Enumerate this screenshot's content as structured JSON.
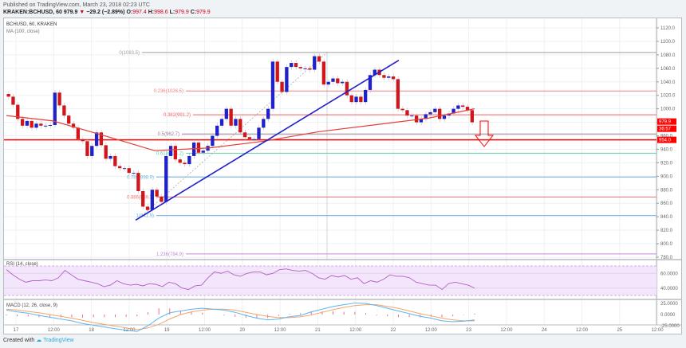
{
  "header": {
    "published": "Published on TradingView.com, March 23, 2018 02:23 UTC",
    "symbol": "KRAKEN:BCHUSD, 60",
    "last": "979.9",
    "change": "−29.2 (−2.89%)",
    "o_label": "O:",
    "o": "997.4",
    "h_label": "H:",
    "h": "998.6",
    "l_label": "L:",
    "l": "979.9",
    "c_label": "C:",
    "c": "979.9"
  },
  "legend": {
    "series": "BCHUSD, 60, KRAKEN",
    "ma": "MA (100, close)",
    "rsi": "RSI (14, close)",
    "macd": "MACD (12, 26, close, 9)"
  },
  "footer": {
    "created_with": "Created with",
    "brand": "TradingView"
  },
  "colors": {
    "up": "#1e22c8",
    "down": "#d0151b",
    "ma": "#e0403a",
    "support": "#ff0000",
    "trendline": "#2020cc",
    "rsi": "#b45fc4",
    "rsi_band": "#f3e5fb",
    "macd": "#5bb4f0",
    "signal": "#f4a46a",
    "hist": "#f06a94"
  },
  "price_labels": {
    "last": "979.9",
    "countdown": "36:57",
    "support": "954.0"
  },
  "chart_data": [
    {
      "type": "candlestick",
      "title": "BCHUSD, 60, KRAKEN",
      "x_ticks": [
        "17",
        "12:00",
        "18",
        "12:00",
        "19",
        "12:00",
        "20",
        "12:00",
        "21",
        "12:00",
        "22",
        "12:00",
        "23",
        "12:00",
        "24",
        "12:00",
        "25",
        "12:00"
      ],
      "y_ticks": [
        "1120.0",
        "1100.0",
        "1080.0",
        "1060.0",
        "1040.0",
        "1020.0",
        "1000.0",
        "980.0",
        "960.0",
        "940.0",
        "920.0",
        "900.0",
        "880.0",
        "860.0",
        "840.0",
        "820.0",
        "800.0",
        "780.0"
      ],
      "ylim": [
        770,
        1130
      ],
      "fibonacci": [
        {
          "ratio": "0",
          "price": 1083.5,
          "label": "0(1083.5)",
          "color": "#9e9e9e"
        },
        {
          "ratio": "0.236",
          "price": 1026.5,
          "label": "0.236(1026.5)",
          "color": "#f08080"
        },
        {
          "ratio": "0.382",
          "price": 991.2,
          "label": "0.382(991.2)",
          "color": "#f06060"
        },
        {
          "ratio": "0.5",
          "price": 962.7,
          "label": "0.5(962.7)",
          "color": "#9c7f8c"
        },
        {
          "ratio": "0.618",
          "price": 934.2,
          "label": "0.618(934.2)",
          "color": "#5fcfa5"
        },
        {
          "ratio": "0.786",
          "price": 898.9,
          "label": "0.786(898.9)",
          "color": "#6fb2dd"
        },
        {
          "ratio": "0.886",
          "price": 869.3,
          "label": "0.886(869.3)",
          "color": "#f07070"
        },
        {
          "ratio": "1",
          "price": 841.9,
          "label": "1(841.9)",
          "color": "#6fb2dd"
        },
        {
          "ratio": "1.236",
          "price": 784.9,
          "label": "1.236(784.9)",
          "color": "#c08ad8"
        }
      ],
      "support_line": 954.0,
      "trendline": {
        "from": {
          "x_label": "18 18:00",
          "price": 835
        },
        "to": {
          "x_label": "22 06:00",
          "price": 1072
        }
      },
      "ma100_approx": [
        [
          0,
          990
        ],
        [
          60,
          982
        ],
        [
          120,
          962
        ],
        [
          190,
          938
        ],
        [
          260,
          942
        ],
        [
          330,
          952
        ],
        [
          400,
          966
        ],
        [
          470,
          976
        ],
        [
          540,
          986
        ],
        [
          600,
          1000
        ]
      ],
      "closes_approx": [
        1018,
        1006,
        985,
        975,
        982,
        972,
        978,
        975,
        975,
        976,
        1024,
        1005,
        990,
        978,
        972,
        955,
        952,
        930,
        945,
        965,
        946,
        926,
        930,
        915,
        912,
        912,
        905,
        905,
        878,
        855,
        850,
        880,
        870,
        862,
        930,
        945,
        925,
        920,
        918,
        930,
        950,
        935,
        938,
        945,
        960,
        975,
        985,
        1000,
        975,
        985,
        965,
        958,
        955,
        955,
        972,
        985,
        1000,
        1070,
        1040,
        1025,
        1062,
        1068,
        1062,
        1060,
        1060,
        1058,
        1078,
        1070,
        1036,
        1040,
        1045,
        1038,
        1040,
        1020,
        1010,
        1018,
        1010,
        1028,
        1050,
        1058,
        1050,
        1046,
        1048,
        1044,
        1000,
        998,
        990,
        990,
        980,
        985,
        992,
        995,
        1000,
        985,
        990,
        993,
        1000,
        1005,
        1003,
        998,
        980
      ]
    },
    {
      "type": "line",
      "title": "RSI (14, close)",
      "y_ticks": [
        "60.0000",
        "40.0000"
      ],
      "band": [
        30,
        70
      ],
      "values_approx": [
        65,
        58,
        52,
        48,
        50,
        50,
        51,
        50,
        54,
        64,
        58,
        52,
        50,
        48,
        46,
        42,
        44,
        50,
        46,
        44,
        45,
        43,
        46,
        45,
        42,
        48,
        46,
        40,
        38,
        43,
        44,
        54,
        62,
        60,
        63,
        58,
        56,
        60,
        62,
        62,
        58,
        60,
        65,
        66,
        64,
        63,
        64,
        60,
        54,
        52,
        57,
        55,
        57,
        52,
        54,
        46,
        50,
        48,
        52,
        58,
        56,
        56,
        54,
        48,
        46,
        44,
        44,
        38,
        46,
        48,
        46,
        44,
        40
      ]
    },
    {
      "type": "line",
      "title": "MACD (12, 26, close, 9)",
      "y_ticks": [
        "25.0000",
        "0.0000",
        "-25.0000"
      ],
      "series": [
        {
          "name": "MACD",
          "values_approx": [
            10,
            6,
            3,
            -2,
            -6,
            -10,
            -14,
            -20,
            -24,
            -28,
            -32,
            -35,
            -38,
            -25,
            -8,
            4,
            8,
            12,
            14,
            12,
            10,
            5,
            -2,
            -8,
            -12,
            -10,
            -5,
            -2,
            6,
            12,
            18,
            22,
            26,
            25,
            20,
            14,
            8,
            2,
            -4,
            -8,
            -14,
            -16,
            -15,
            -12
          ]
        },
        {
          "name": "Signal",
          "values_approx": [
            12,
            10,
            7,
            4,
            0,
            -4,
            -8,
            -13,
            -18,
            -22,
            -26,
            -30,
            -34,
            -30,
            -22,
            -10,
            0,
            6,
            10,
            12,
            12,
            10,
            5,
            0,
            -4,
            -7,
            -7,
            -5,
            -1,
            5,
            11,
            16,
            20,
            22,
            22,
            18,
            14,
            8,
            2,
            -3,
            -8,
            -12,
            -14,
            -14
          ]
        },
        {
          "name": "Histogram",
          "values_approx": [
            -2,
            -4,
            -4,
            -6,
            -6,
            -6,
            -6,
            -7,
            -6,
            -6,
            -6,
            -5,
            -4,
            5,
            14,
            14,
            8,
            6,
            4,
            0,
            -2,
            -5,
            -7,
            -8,
            -8,
            -3,
            2,
            3,
            7,
            7,
            7,
            6,
            6,
            3,
            -2,
            -4,
            -6,
            -6,
            -6,
            -5,
            -6,
            -4,
            -1,
            2
          ]
        }
      ]
    }
  ]
}
